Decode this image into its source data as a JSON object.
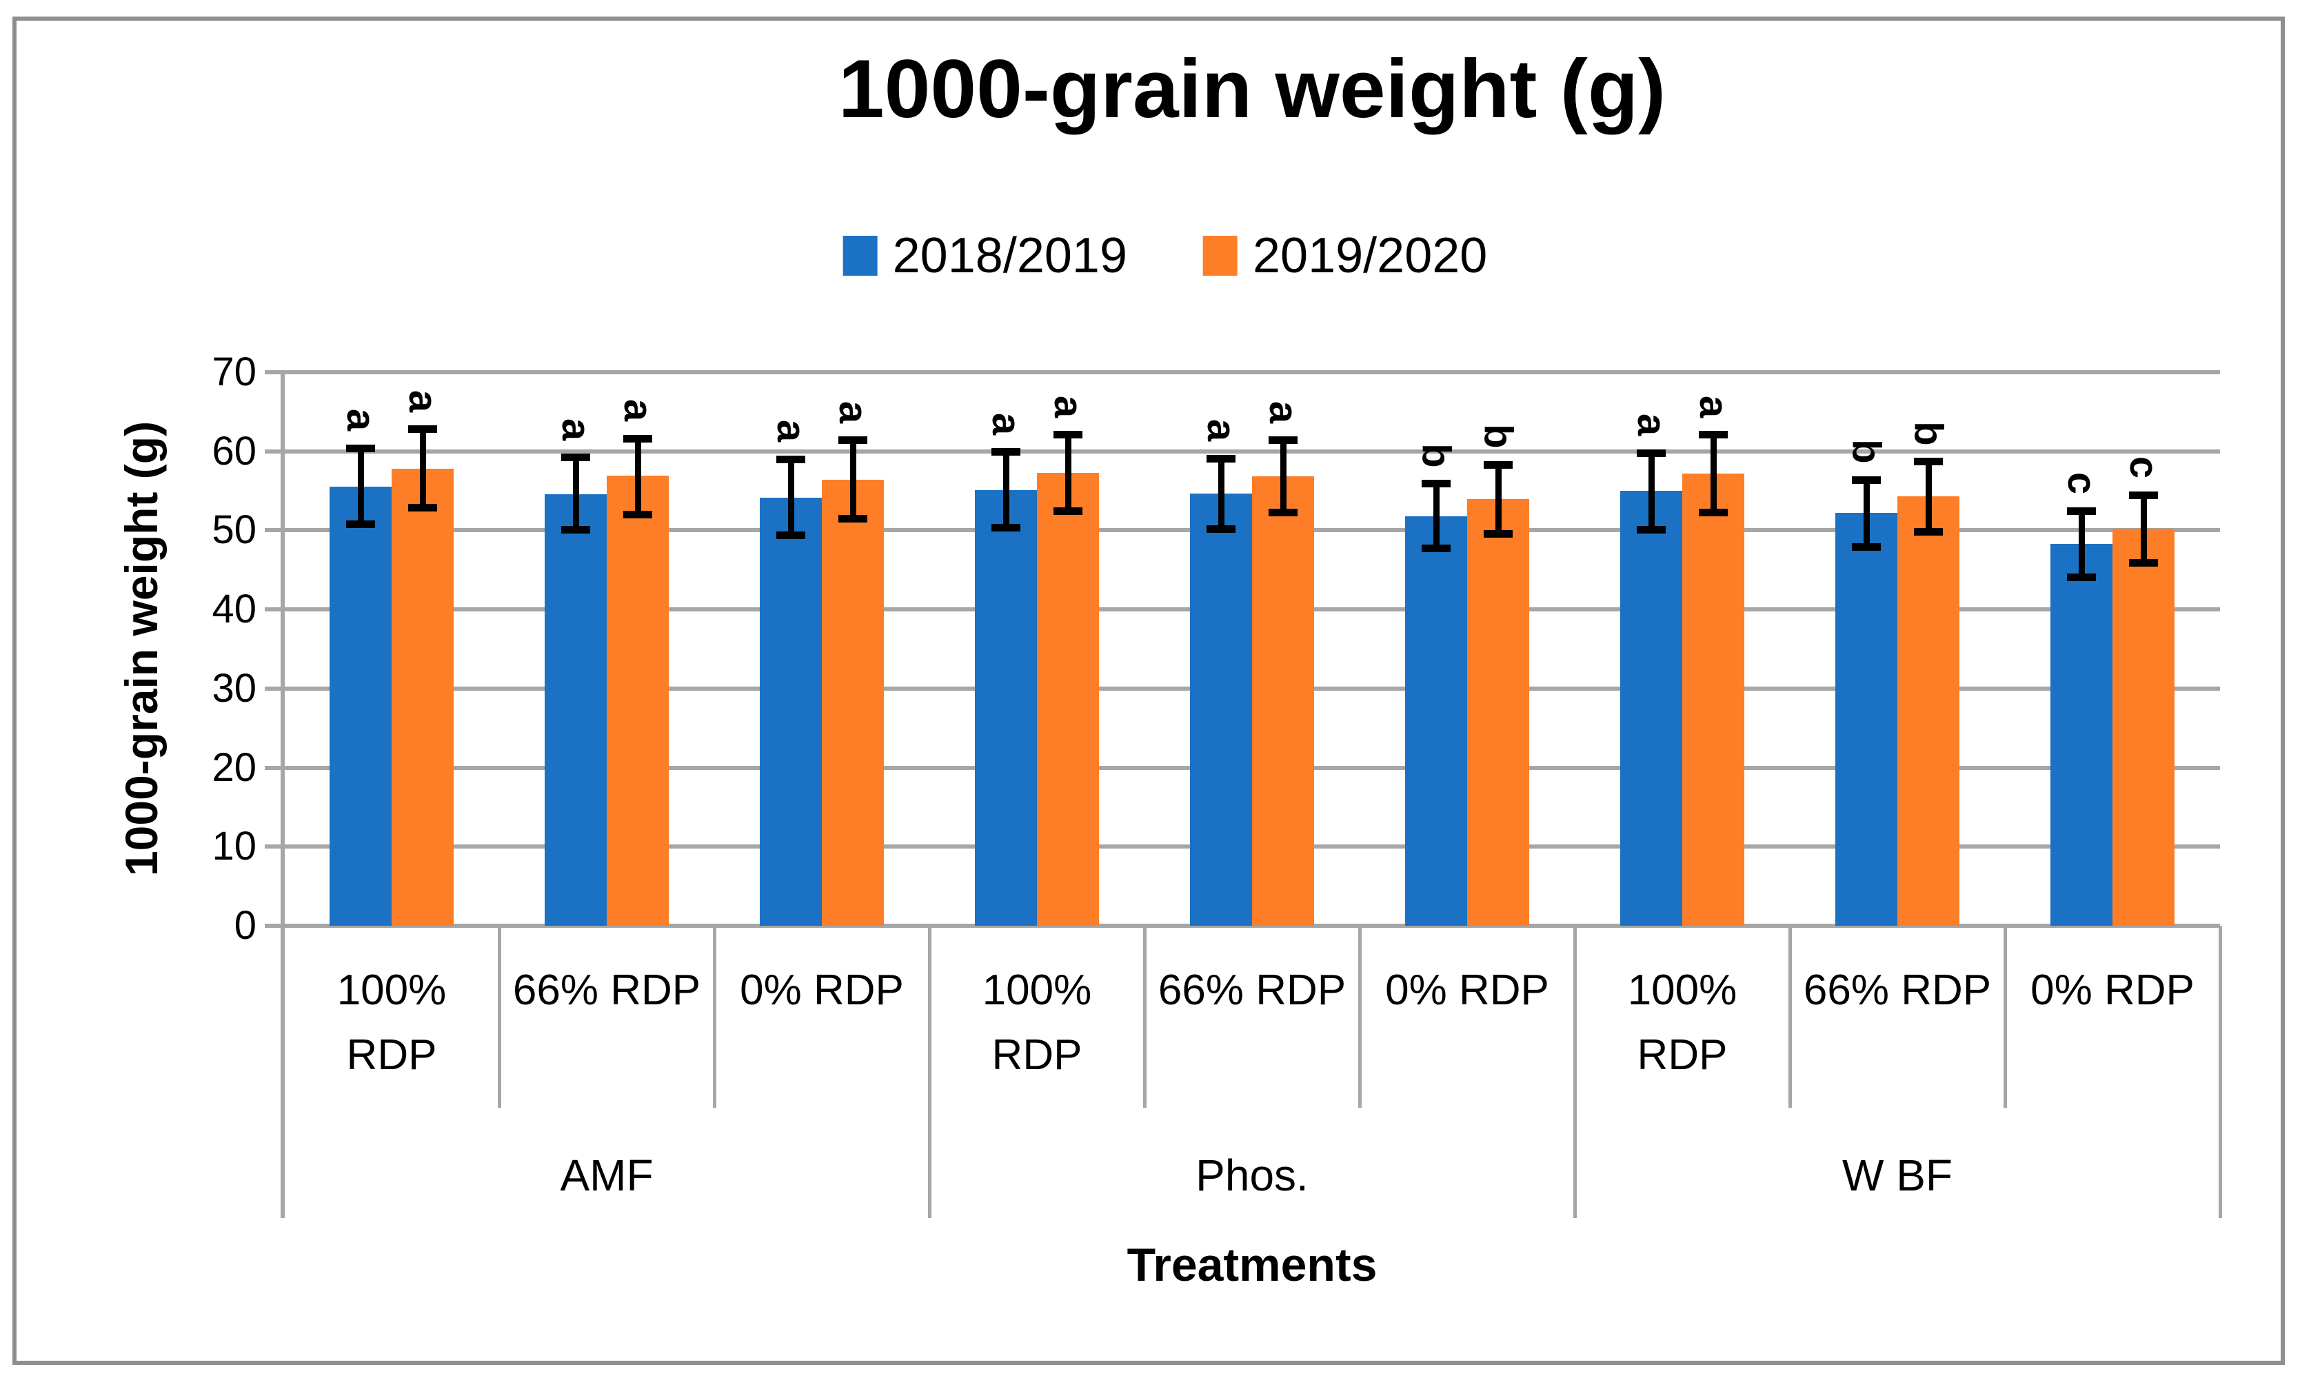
{
  "chart_data": {
    "type": "bar",
    "title": "1000-grain weight (g)",
    "xlabel": "Treatments",
    "ylabel": "1000-grain weight (g)",
    "ylim": [
      0,
      70
    ],
    "y_ticks": [
      0,
      10,
      20,
      30,
      40,
      50,
      60,
      70
    ],
    "grid": true,
    "legend_position": "top",
    "series": [
      {
        "name": "2018/2019",
        "color": "#1b72c4"
      },
      {
        "name": "2019/2020",
        "color": "#fd7e27"
      }
    ],
    "error_bar_color": "#000000",
    "gridline_color": "#a6a6a6",
    "groups": [
      {
        "label": "AMF",
        "cells": [
          {
            "label": "100% RDP",
            "bars": [
              {
                "series": "2018/2019",
                "value": 55.5,
                "err_low": 50.8,
                "err_high": 60.4,
                "letter": "a"
              },
              {
                "series": "2019/2020",
                "value": 57.8,
                "err_low": 52.9,
                "err_high": 62.8,
                "letter": "a"
              }
            ]
          },
          {
            "label": "66% RDP",
            "bars": [
              {
                "series": "2018/2019",
                "value": 54.6,
                "err_low": 50.1,
                "err_high": 59.2,
                "letter": "a"
              },
              {
                "series": "2019/2020",
                "value": 56.9,
                "err_low": 52.0,
                "err_high": 61.6,
                "letter": "a"
              }
            ]
          },
          {
            "label": "0% RDP",
            "bars": [
              {
                "series": "2018/2019",
                "value": 54.1,
                "err_low": 49.4,
                "err_high": 59.0,
                "letter": "a"
              },
              {
                "series": "2019/2020",
                "value": 56.4,
                "err_low": 51.5,
                "err_high": 61.4,
                "letter": "a"
              }
            ]
          }
        ]
      },
      {
        "label": "Phos.",
        "cells": [
          {
            "label": "100% RDP",
            "bars": [
              {
                "series": "2018/2019",
                "value": 55.1,
                "err_low": 50.3,
                "err_high": 59.9,
                "letter": "a"
              },
              {
                "series": "2019/2020",
                "value": 57.3,
                "err_low": 52.4,
                "err_high": 62.1,
                "letter": "a"
              }
            ]
          },
          {
            "label": "66% RDP",
            "bars": [
              {
                "series": "2018/2019",
                "value": 54.7,
                "err_low": 50.2,
                "err_high": 59.1,
                "letter": "a"
              },
              {
                "series": "2019/2020",
                "value": 56.8,
                "err_low": 52.3,
                "err_high": 61.4,
                "letter": "a"
              }
            ]
          },
          {
            "label": "0% RDP",
            "bars": [
              {
                "series": "2018/2019",
                "value": 51.8,
                "err_low": 47.7,
                "err_high": 55.9,
                "letter": "b"
              },
              {
                "series": "2019/2020",
                "value": 54.0,
                "err_low": 49.6,
                "err_high": 58.3,
                "letter": "b"
              }
            ]
          }
        ]
      },
      {
        "label": "W BF",
        "cells": [
          {
            "label": "100% RDP",
            "bars": [
              {
                "series": "2018/2019",
                "value": 55.0,
                "err_low": 50.1,
                "err_high": 59.8,
                "letter": "a"
              },
              {
                "series": "2019/2020",
                "value": 57.2,
                "err_low": 52.3,
                "err_high": 62.1,
                "letter": "a"
              }
            ]
          },
          {
            "label": "66% RDP",
            "bars": [
              {
                "series": "2018/2019",
                "value": 52.2,
                "err_low": 47.9,
                "err_high": 56.4,
                "letter": "b"
              },
              {
                "series": "2019/2020",
                "value": 54.3,
                "err_low": 49.8,
                "err_high": 58.7,
                "letter": "b"
              }
            ]
          },
          {
            "label": "0% RDP",
            "bars": [
              {
                "series": "2018/2019",
                "value": 48.3,
                "err_low": 44.1,
                "err_high": 52.4,
                "letter": "c"
              },
              {
                "series": "2019/2020",
                "value": 50.2,
                "err_low": 45.9,
                "err_high": 54.4,
                "letter": "c"
              }
            ]
          }
        ]
      }
    ]
  }
}
